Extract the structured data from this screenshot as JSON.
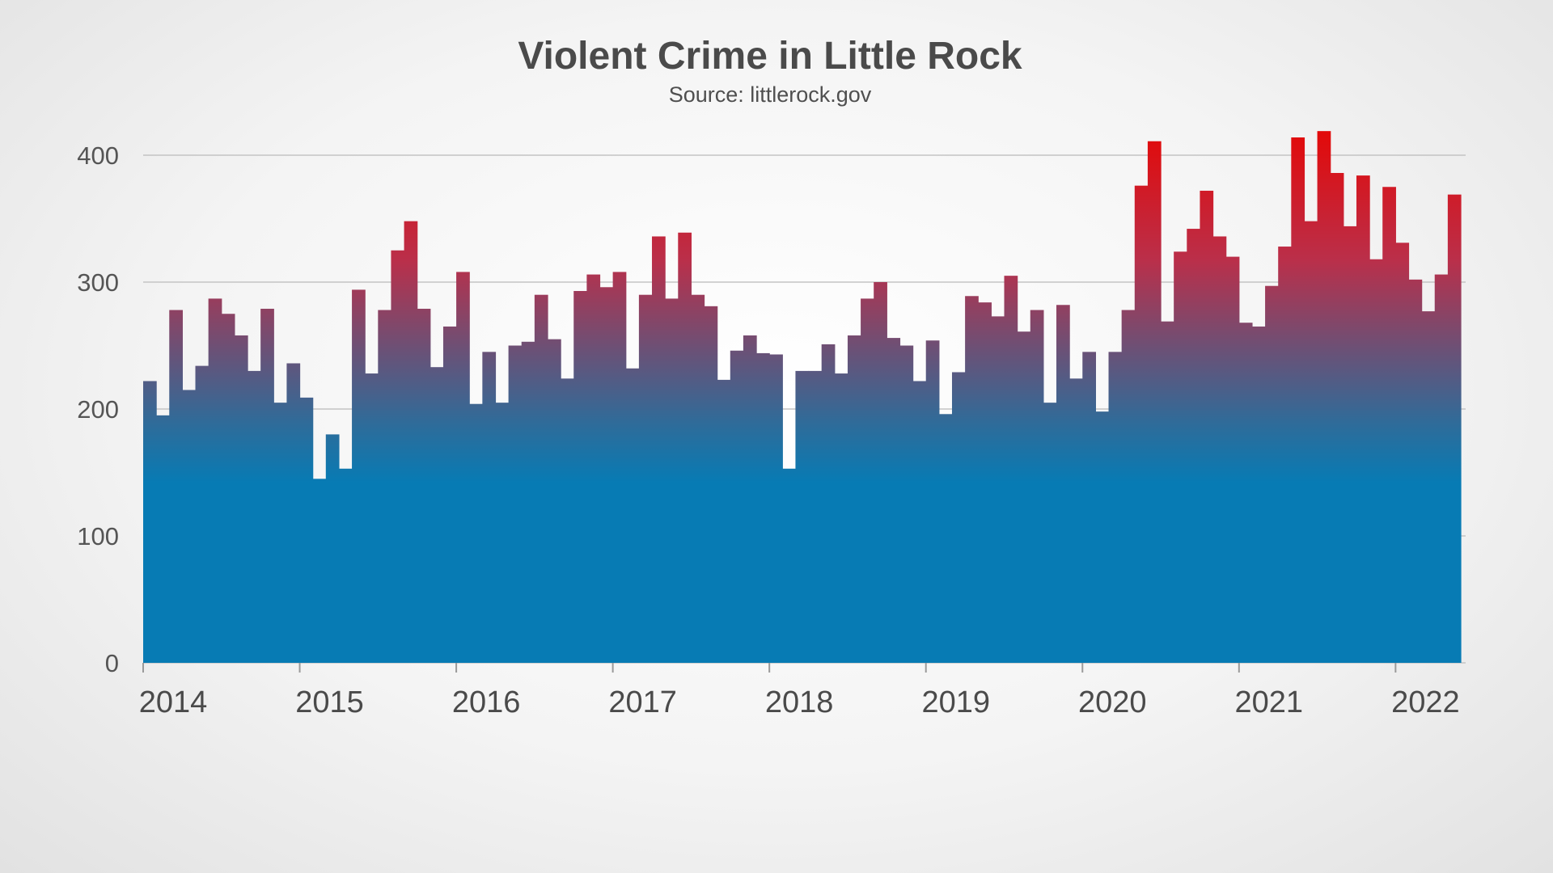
{
  "chart_data": {
    "type": "bar",
    "title": "Violent Crime in Little Rock",
    "subtitle": "Source: littlerock.gov",
    "xlabel": "",
    "ylabel": "",
    "ylim": [
      0,
      400
    ],
    "yticks": [
      0,
      100,
      200,
      300,
      400
    ],
    "x_start": "2014-01",
    "x_end": "2022-05",
    "year_labels": [
      "2014",
      "2015",
      "2016",
      "2017",
      "2018",
      "2019",
      "2020",
      "2021",
      "2022"
    ],
    "grid": true,
    "legend": "none",
    "color_low": "#077bb4",
    "color_high": "#e20a0a",
    "values": [
      222,
      195,
      278,
      215,
      234,
      287,
      275,
      258,
      230,
      279,
      205,
      236,
      209,
      145,
      180,
      153,
      294,
      228,
      278,
      325,
      348,
      279,
      233,
      265,
      308,
      204,
      245,
      205,
      250,
      253,
      290,
      255,
      224,
      293,
      306,
      296,
      308,
      232,
      290,
      336,
      287,
      339,
      290,
      281,
      223,
      246,
      258,
      244,
      243,
      153,
      230,
      230,
      251,
      228,
      258,
      287,
      300,
      256,
      250,
      222,
      254,
      196,
      229,
      289,
      284,
      273,
      305,
      261,
      278,
      205,
      282,
      224,
      245,
      198,
      245,
      278,
      376,
      411,
      269,
      324,
      342,
      372,
      336,
      320,
      268,
      265,
      297,
      328,
      414,
      348,
      419,
      386,
      344,
      384,
      318,
      375,
      331,
      302,
      277,
      306,
      369
    ]
  }
}
